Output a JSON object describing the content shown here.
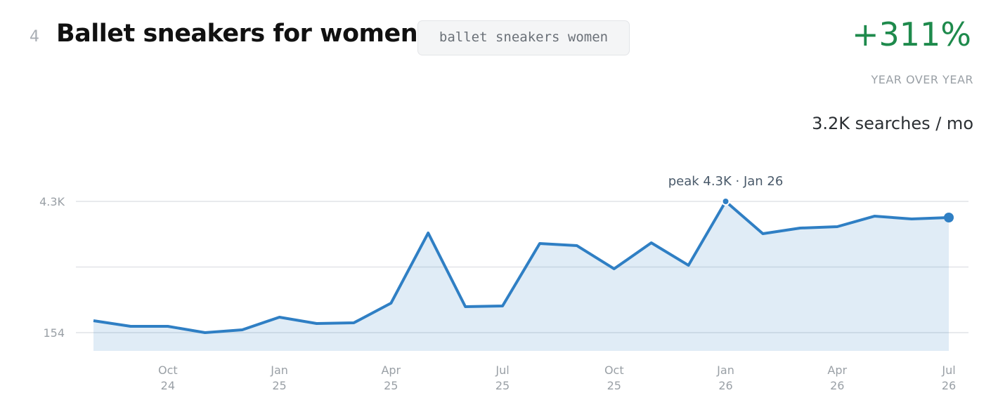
{
  "header": {
    "rank": "4",
    "title": "Ballet sneakers for women",
    "keyword": "ballet sneakers women",
    "change": "+311%",
    "change_label": "YEAR OVER YEAR",
    "volume": "3.2K searches / mo"
  },
  "chart_data": {
    "type": "line",
    "annotation": "peak 4.3K · Jan 26",
    "color": "#2f7fc4",
    "x": [
      "2024-08",
      "2024-09",
      "2024-10",
      "2024-11",
      "2024-12",
      "2025-01",
      "2025-02",
      "2025-03",
      "2025-04",
      "2025-05",
      "2025-06",
      "2025-07",
      "2025-08",
      "2025-09",
      "2025-10",
      "2025-11",
      "2025-12",
      "2026-01",
      "2026-02",
      "2026-03",
      "2026-04",
      "2026-05",
      "2026-06",
      "2026-07"
    ],
    "values": [
      531,
      354,
      354,
      154,
      243,
      642,
      442,
      464,
      1085,
      3302,
      974,
      996,
      2970,
      2903,
      2171,
      2992,
      2282,
      4300,
      3280,
      3457,
      3502,
      3834,
      3746,
      3790
    ],
    "ylim": [
      -422,
      4300
    ],
    "yticks": [
      154,
      {
        "value": 4300,
        "label": "4.3K"
      }
    ],
    "xticks": [
      {
        "value": "2024-10",
        "month": "Oct",
        "year": "24"
      },
      {
        "value": "2025-01",
        "month": "Jan",
        "year": "25"
      },
      {
        "value": "2025-04",
        "month": "Apr",
        "year": "25"
      },
      {
        "value": "2025-07",
        "month": "Jul",
        "year": "25"
      },
      {
        "value": "2025-10",
        "month": "Oct",
        "year": "25"
      },
      {
        "value": "2026-01",
        "month": "Jan",
        "year": "26"
      },
      {
        "value": "2026-04",
        "month": "Apr",
        "year": "26"
      },
      {
        "value": "2026-07",
        "month": "Jul",
        "year": "26"
      }
    ],
    "grid": true
  }
}
